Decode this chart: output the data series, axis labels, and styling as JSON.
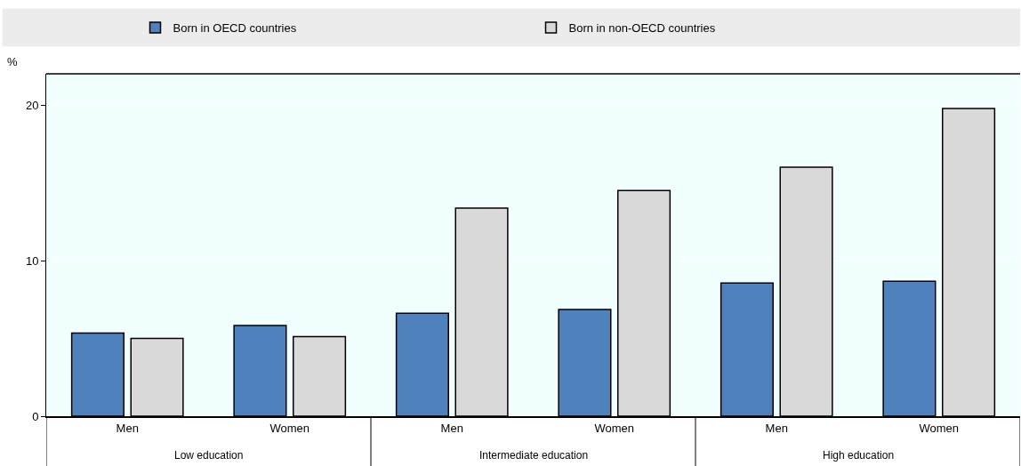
{
  "chart_data": {
    "type": "bar",
    "ylabel": "%",
    "categories": [
      "Men",
      "Women",
      "Men",
      "Women",
      "Men",
      "Women"
    ],
    "series": [
      {
        "name": "Born in OECD countries",
        "color": "#4f81bd",
        "values": [
          5.35,
          5.83,
          6.61,
          6.86,
          8.56,
          8.67
        ]
      },
      {
        "name": "Born in non-OECD countries",
        "color": "#d9d9d9",
        "values": [
          5.0,
          5.12,
          13.37,
          14.5,
          16.0,
          19.77
        ]
      }
    ],
    "annotations": [
      "Low education",
      "Intermediate education",
      "High education"
    ],
    "ylim": [
      0,
      22
    ],
    "yticks": [
      0,
      10,
      20
    ],
    "grid": "y",
    "legend": "top"
  }
}
